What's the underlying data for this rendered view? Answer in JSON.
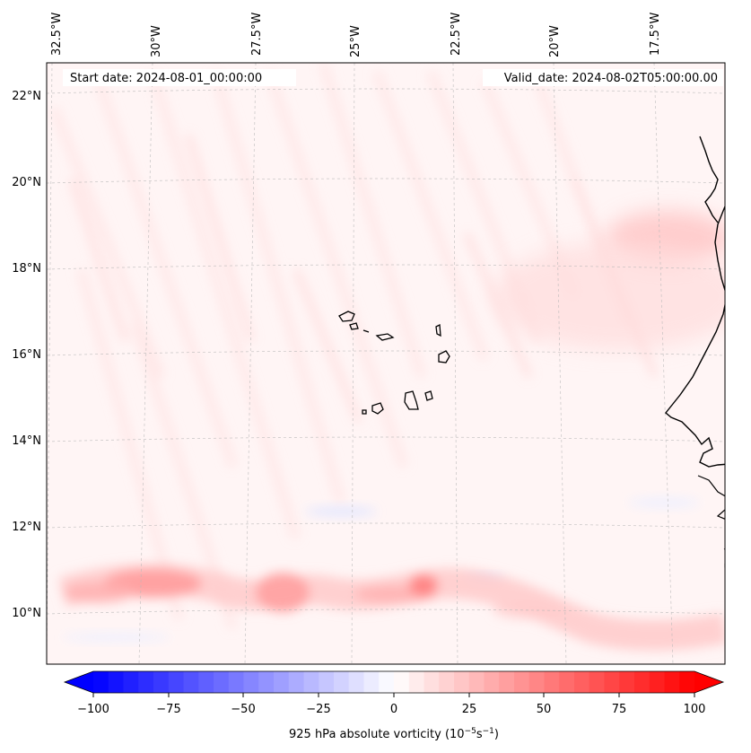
{
  "map": {
    "start_label": "Start date: 2024-08-01_00:00:00",
    "valid_label": "Valid_date: 2024-08-02T05:00:00.00",
    "lon_labels": [
      "32.5°W",
      "30°W",
      "27.5°W",
      "25°W",
      "22.5°W",
      "20°W",
      "17.5°W"
    ],
    "lat_labels": [
      "22°N",
      "20°N",
      "18°N",
      "16°N",
      "14°N",
      "12°N",
      "10°N"
    ]
  },
  "colorbar": {
    "label": "925 hPa absolute vorticity (10",
    "label_exp1": "−5",
    "label_mid": "s",
    "label_exp2": "−1",
    "label_end": ")",
    "ticks": [
      "−100",
      "−75",
      "−50",
      "−25",
      "0",
      "25",
      "50",
      "75",
      "100"
    ],
    "vmin": -100,
    "vmax": 100,
    "colors": {
      "negative": "#0000ff",
      "neutral": "#ffffff",
      "positive": "#ff0000"
    }
  }
}
